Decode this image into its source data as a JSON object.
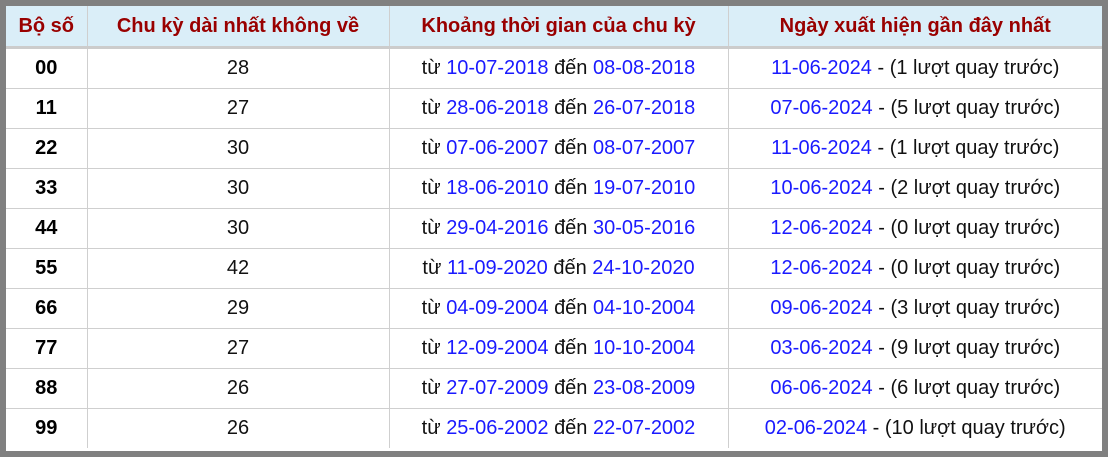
{
  "headers": [
    "Bộ số",
    "Chu kỳ dài nhất không về",
    "Khoảng thời gian của chu kỳ",
    "Ngày xuất hiện gần đây nhất"
  ],
  "labels": {
    "from": "từ",
    "to": "đến",
    "sep": " - "
  },
  "colors": {
    "header_text": "#990000",
    "header_bg": "#daeef8",
    "link": "#1a1aff",
    "frame": "#808080"
  },
  "rows": [
    {
      "num": "00",
      "cycle": "28",
      "start": "10-07-2018",
      "end": "08-08-2018",
      "last": "11-06-2024",
      "ago": "(1 lượt quay trước)"
    },
    {
      "num": "11",
      "cycle": "27",
      "start": "28-06-2018",
      "end": "26-07-2018",
      "last": "07-06-2024",
      "ago": "(5 lượt quay trước)"
    },
    {
      "num": "22",
      "cycle": "30",
      "start": "07-06-2007",
      "end": "08-07-2007",
      "last": "11-06-2024",
      "ago": "(1 lượt quay trước)"
    },
    {
      "num": "33",
      "cycle": "30",
      "start": "18-06-2010",
      "end": "19-07-2010",
      "last": "10-06-2024",
      "ago": "(2 lượt quay trước)"
    },
    {
      "num": "44",
      "cycle": "30",
      "start": "29-04-2016",
      "end": "30-05-2016",
      "last": "12-06-2024",
      "ago": "(0 lượt quay trước)"
    },
    {
      "num": "55",
      "cycle": "42",
      "start": "11-09-2020",
      "end": "24-10-2020",
      "last": "12-06-2024",
      "ago": "(0 lượt quay trước)"
    },
    {
      "num": "66",
      "cycle": "29",
      "start": "04-09-2004",
      "end": "04-10-2004",
      "last": "09-06-2024",
      "ago": "(3 lượt quay trước)"
    },
    {
      "num": "77",
      "cycle": "27",
      "start": "12-09-2004",
      "end": "10-10-2004",
      "last": "03-06-2024",
      "ago": "(9 lượt quay trước)"
    },
    {
      "num": "88",
      "cycle": "26",
      "start": "27-07-2009",
      "end": "23-08-2009",
      "last": "06-06-2024",
      "ago": "(6 lượt quay trước)"
    },
    {
      "num": "99",
      "cycle": "26",
      "start": "25-06-2002",
      "end": "22-07-2002",
      "last": "02-06-2024",
      "ago": "(10 lượt quay trước)"
    }
  ]
}
